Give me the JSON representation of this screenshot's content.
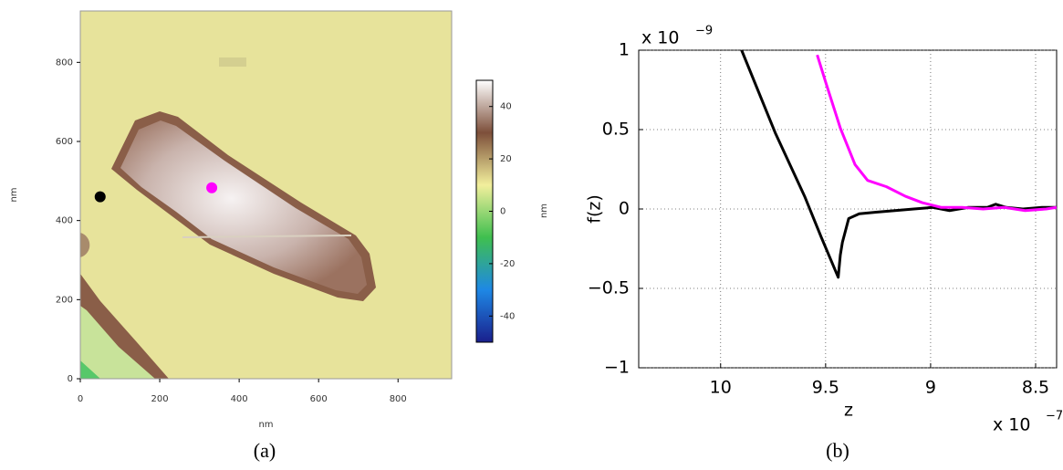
{
  "chart_data": [
    {
      "type": "image",
      "xlabel": "nm",
      "ylabel": "nm",
      "caption": "(a)",
      "xlim": [
        0,
        935
      ],
      "ylim": [
        0,
        930
      ],
      "xticks": [
        0,
        200,
        400,
        600,
        800
      ],
      "yticks": [
        0,
        200,
        400,
        600,
        800
      ],
      "points": [
        {
          "x": 50,
          "y": 460,
          "color": "#000000"
        },
        {
          "x": 331,
          "y": 483,
          "color": "#ff00ff"
        }
      ],
      "colorbar": {
        "label": "nm",
        "lim": [
          -50,
          50
        ],
        "ticks": [
          -40,
          -20,
          0,
          20,
          40
        ],
        "colormap": [
          "#1a1f8c",
          "#1e88e5",
          "#3fbf4f",
          "#f2ef9c",
          "#7d4f3a",
          "#ffffff"
        ]
      }
    },
    {
      "type": "line",
      "xlabel": "z",
      "ylabel": "f(z)",
      "caption": "(b)",
      "x_multiplier": {
        "base": "x 10",
        "exponent": "−7"
      },
      "y_multiplier": {
        "base": "x 10",
        "exponent": "−9"
      },
      "xlim": [
        10.39,
        8.4
      ],
      "ylim": [
        -1,
        1
      ],
      "xticks": [
        10,
        9.5,
        9,
        8.5
      ],
      "yticks": [
        {
          "value": -1,
          "label": "−1"
        },
        {
          "value": -0.5,
          "label": "−0.5"
        },
        0,
        0.5,
        1
      ],
      "grid": true,
      "series": [
        {
          "color": "#000000",
          "x": [
            9.9,
            9.74,
            9.6,
            9.52,
            9.44,
            9.43,
            9.42,
            9.4,
            9.39,
            9.34,
            9.26,
            9.17,
            9.08,
            8.99,
            8.91,
            8.82,
            8.73,
            8.69,
            8.64,
            8.56,
            8.47,
            8.4
          ],
          "values": [
            1,
            0.48,
            0.08,
            -0.18,
            -0.43,
            -0.29,
            -0.21,
            -0.11,
            -0.06,
            -0.03,
            -0.02,
            -0.01,
            0,
            0.01,
            -0.01,
            0.01,
            0.01,
            0.03,
            0.01,
            0,
            0.01,
            0.01
          ]
        },
        {
          "color": "#ff00ff",
          "x": [
            9.54,
            9.5,
            9.43,
            9.36,
            9.3,
            9.21,
            9.12,
            9.04,
            8.95,
            8.85,
            8.75,
            8.65,
            8.55,
            8.45,
            8.4
          ],
          "values": [
            0.97,
            0.8,
            0.51,
            0.28,
            0.18,
            0.14,
            0.08,
            0.04,
            0.01,
            0.01,
            0,
            0.01,
            -0.01,
            0,
            0.01
          ]
        }
      ]
    }
  ]
}
